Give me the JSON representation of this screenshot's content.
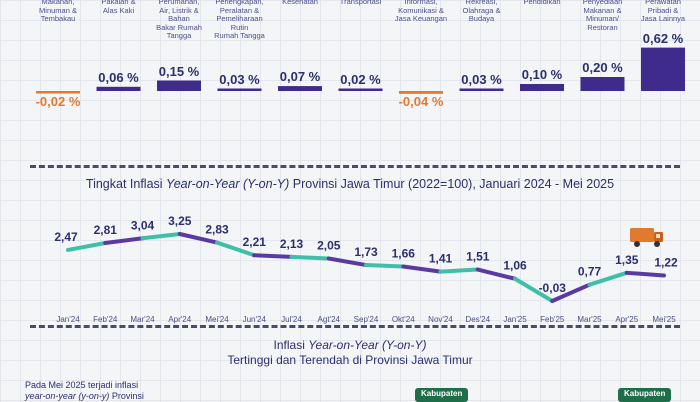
{
  "top_chart": {
    "categories": [
      "Makanan,\nMinuman &\nTembakau",
      "Pakaian &\nAlas Kaki",
      "Perumahan,\nAir, Listrik &\nBahan\nBakar Rumah\nTangga",
      "Perlengkapan,\nPeralatan &\nPemeliharaan\nRutin\nRumah Tangga",
      "Kesehatan",
      "Transportasi",
      "Informasi,\nKomunikasi &\nJasa Keuangan",
      "Rekreasi,\nOlahraga &\nBudaya",
      "Pendidikan",
      "Penyediaan\nMakanan &\nMinuman/\nRestoran",
      "Perawatan\nPribadi &\nJasa Lainnya"
    ],
    "values": [
      -0.02,
      0.06,
      0.15,
      0.03,
      0.07,
      0.02,
      -0.04,
      0.03,
      0.1,
      0.2,
      0.62
    ],
    "value_labels": [
      "-0,02 %",
      "0,06 %",
      "0,15 %",
      "0,03 %",
      "0,07 %",
      "0,02 %",
      "-0,04 %",
      "0,03 %",
      "0,10 %",
      "0,20 %",
      "0,62 %"
    ],
    "colors": {
      "positive": "#3f2b8c",
      "negative": "#e07a2e"
    }
  },
  "chart_data": {
    "type": "line",
    "title_parts": [
      "Tingkat Inflasi ",
      "Year-on-Year (Y-on-Y)",
      " Provinsi Jawa Timur (2022=100), Januari 2024 - Mei 2025"
    ],
    "categories": [
      "Jan'24",
      "Feb'24",
      "Mar'24",
      "Apr'24",
      "Mei'24",
      "Jun'24",
      "Jul'24",
      "Agt'24",
      "Sep'24",
      "Okt'24",
      "Nov'24",
      "Des'24",
      "Jan'25",
      "Feb'25",
      "Mar'25",
      "Apr'25",
      "Mei'25"
    ],
    "values": [
      2.47,
      2.81,
      3.04,
      3.25,
      2.83,
      2.21,
      2.13,
      2.05,
      1.73,
      1.66,
      1.41,
      1.51,
      1.06,
      -0.03,
      0.77,
      1.35,
      1.22
    ],
    "value_labels": [
      "2,47",
      "2,81",
      "3,04",
      "3,25",
      "2,83",
      "2,21",
      "2,13",
      "2,05",
      "1,73",
      "1,66",
      "1,41",
      "1,51",
      "1,06",
      "-0,03",
      "0,77",
      "1,35",
      "1,22"
    ],
    "colors": {
      "teal": "#3fbfa8",
      "purple": "#5a3aa0"
    },
    "icon": "delivery-truck-icon"
  },
  "bottom_section": {
    "title_line1_parts": [
      "Inflasi ",
      "Year-on-Year (Y-on-Y)"
    ],
    "title_line2": "Tertinggi dan Terendah di Provinsi Jawa Timur",
    "note_parts": [
      "Pada Mei 2025 terjadi inflasi",
      "year-on-year (y-on-y)",
      " Provinsi"
    ],
    "badges": [
      "Kabupaten",
      "Kabupaten"
    ],
    "badge_color": "#1f6e4a"
  }
}
